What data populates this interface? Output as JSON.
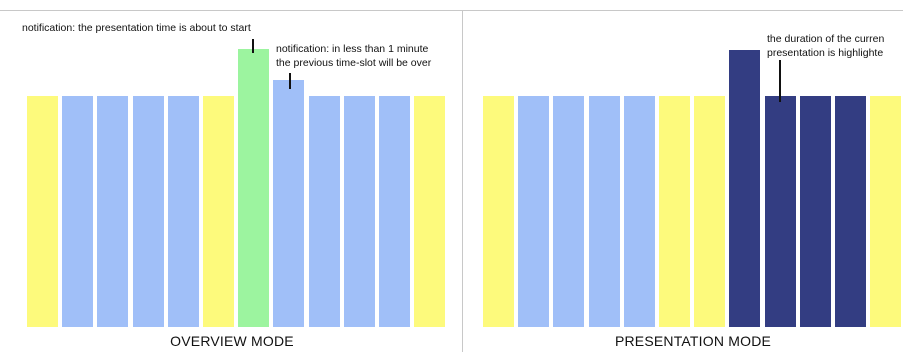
{
  "colors": {
    "break": "#fdfa7c",
    "slot": "#a0bff8",
    "upcoming": "#9cf49f",
    "current": "#333d82"
  },
  "overview": {
    "caption": "OVERVIEW MODE",
    "note_start": "notification: the presentation time is about to start",
    "note_end": "notification: in less than 1 minute\nthe previous time-slot will be over",
    "slots": [
      "break",
      "slot",
      "slot",
      "slot",
      "slot",
      "break",
      "upcoming",
      "slot",
      "slot",
      "slot",
      "slot",
      "break"
    ]
  },
  "presentation": {
    "caption": "PRESENTATION MODE",
    "note_current": "the duration of the curren\npresentation is highlighte",
    "slots": [
      "break",
      "slot",
      "slot",
      "slot",
      "slot",
      "break",
      "break",
      "current",
      "current",
      "current",
      "current",
      "break"
    ]
  }
}
